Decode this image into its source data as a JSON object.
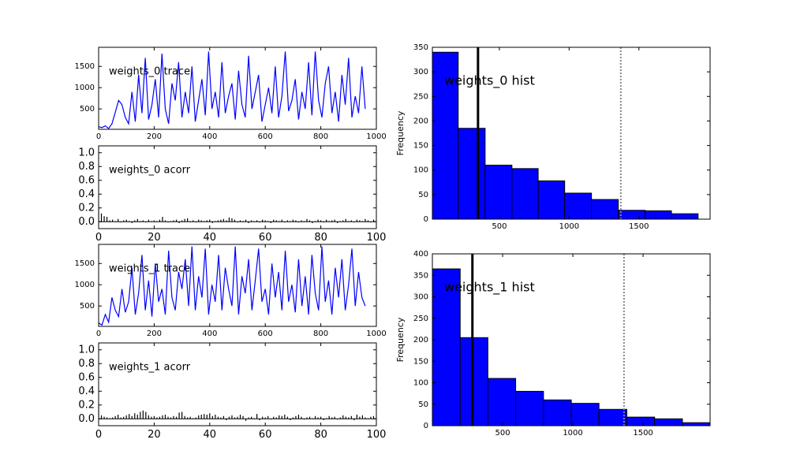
{
  "chart_data": [
    {
      "type": "line",
      "title": "weights_0 trace",
      "color": "#0000ff",
      "x": [
        0,
        12,
        24,
        36,
        48,
        60,
        72,
        84,
        96,
        108,
        120,
        132,
        144,
        156,
        168,
        180,
        192,
        204,
        216,
        228,
        240,
        252,
        264,
        276,
        288,
        300,
        312,
        324,
        336,
        348,
        360,
        372,
        384,
        396,
        408,
        420,
        432,
        444,
        456,
        468,
        480,
        492,
        504,
        516,
        528,
        540,
        552,
        564,
        576,
        588,
        600,
        612,
        624,
        636,
        648,
        660,
        672,
        684,
        696,
        708,
        720,
        732,
        744,
        756,
        768,
        780,
        792,
        804,
        816,
        828,
        840,
        852,
        864,
        876,
        888,
        900,
        912,
        924,
        936,
        948,
        960
      ],
      "values": [
        80,
        60,
        100,
        40,
        150,
        420,
        700,
        600,
        300,
        150,
        900,
        200,
        1300,
        400,
        1700,
        250,
        600,
        1200,
        300,
        1800,
        500,
        150,
        1100,
        700,
        1600,
        300,
        900,
        400,
        1500,
        200,
        700,
        1200,
        350,
        1850,
        500,
        900,
        300,
        1600,
        400,
        800,
        1100,
        250,
        1400,
        600,
        300,
        1750,
        500,
        900,
        1300,
        200,
        600,
        1000,
        400,
        1500,
        300,
        800,
        1850,
        450,
        700,
        1200,
        250,
        900,
        500,
        1600,
        350,
        1850,
        700,
        300,
        1100,
        1500,
        400,
        900,
        200,
        1300,
        600,
        1700,
        300,
        800,
        400,
        1500,
        500
      ],
      "xlim": [
        0,
        1000
      ],
      "xticks": [
        0,
        200,
        400,
        600,
        800,
        1000
      ],
      "ylim": [
        20,
        1950
      ],
      "yticks": [
        500,
        1000,
        1500
      ]
    },
    {
      "type": "stem",
      "title": "weights_0 acorr",
      "color": "#000000",
      "x": [
        0,
        1,
        2,
        3,
        4,
        5,
        6,
        7,
        8,
        9,
        10,
        11,
        12,
        13,
        14,
        15,
        16,
        17,
        18,
        19,
        20,
        21,
        22,
        23,
        24,
        25,
        26,
        27,
        28,
        29,
        30,
        31,
        32,
        33,
        34,
        35,
        36,
        37,
        38,
        39,
        40,
        41,
        42,
        43,
        44,
        45,
        46,
        47,
        48,
        49,
        50,
        51,
        52,
        53,
        54,
        55,
        56,
        57,
        58,
        59,
        60,
        61,
        62,
        63,
        64,
        65,
        66,
        67,
        68,
        69,
        70,
        71,
        72,
        73,
        74,
        75,
        76,
        77,
        78,
        79,
        80,
        81,
        82,
        83,
        84,
        85,
        86,
        87,
        88,
        89,
        90,
        91,
        92,
        93,
        94,
        95,
        96,
        97,
        98,
        99
      ],
      "values": [
        0.22,
        0.12,
        0.08,
        0.07,
        0.02,
        0.03,
        0.01,
        0.04,
        -0.01,
        0.02,
        0.03,
        0.01,
        -0.02,
        0.02,
        0.04,
        0.01,
        0.02,
        -0.01,
        0.03,
        0.01,
        0.02,
        0.01,
        0.03,
        0.07,
        0.02,
        -0.01,
        0.01,
        0.02,
        0.03,
        -0.02,
        0.02,
        0.04,
        0.05,
        0.01,
        0.02,
        -0.01,
        0.03,
        0.02,
        0.01,
        0.02,
        0.03,
        -0.02,
        0.01,
        0.02,
        0.03,
        0.04,
        0.02,
        0.06,
        0.05,
        0.03,
        -0.01,
        0.02,
        0.01,
        0.03,
        -0.02,
        0.02,
        0.01,
        0.02,
        -0.01,
        0.03,
        0.02,
        0.01,
        -0.02,
        0.03,
        0.02,
        0.01,
        0.03,
        -0.01,
        0.02,
        0.01,
        0.03,
        0.02,
        -0.01,
        0.02,
        0.01,
        0.04,
        0.02,
        -0.02,
        0.01,
        0.03,
        0.02,
        -0.01,
        0.03,
        0.01,
        0.02,
        0.03,
        -0.02,
        0.01,
        0.02,
        0.04,
        0.01,
        0.02,
        -0.01,
        0.03,
        0.02,
        0.01,
        0.04,
        0.02,
        -0.01,
        0.03
      ],
      "xlim": [
        0,
        100
      ],
      "xticks": [
        0,
        20,
        40,
        60,
        80,
        100
      ],
      "ylim": [
        -0.1,
        1.1
      ],
      "yticks": [
        {
          "value": 0,
          "label": "0.0"
        },
        0.2,
        0.4,
        0.6,
        0.8,
        {
          "value": 1,
          "label": "1.0"
        }
      ]
    },
    {
      "type": "histogram",
      "title": "weights_0 hist",
      "ylabel": "Frequency",
      "color": "#0000ff",
      "bins": [
        20,
        205,
        398,
        590,
        778,
        968,
        1160,
        1352,
        1545,
        1733,
        1924
      ],
      "values": [
        340,
        185,
        110,
        103,
        78,
        53,
        40,
        18,
        17,
        11
      ],
      "vlines": [
        {
          "value": 347,
          "color": "#000000",
          "dashed": false
        },
        {
          "value": 1370,
          "color": "#888888",
          "dashed": true
        }
      ],
      "xlim": [
        20,
        2010
      ],
      "xticks": [
        500,
        1000,
        1500
      ],
      "ylim": [
        0,
        350
      ],
      "yticks": [
        0,
        50,
        100,
        150,
        200,
        250,
        300,
        350
      ]
    },
    {
      "type": "line",
      "title": "weights_1 trace",
      "color": "#0000ff",
      "x": [
        0,
        12,
        24,
        36,
        48,
        60,
        72,
        84,
        96,
        108,
        120,
        132,
        144,
        156,
        168,
        180,
        192,
        204,
        216,
        228,
        240,
        252,
        264,
        276,
        288,
        300,
        312,
        324,
        336,
        348,
        360,
        372,
        384,
        396,
        408,
        420,
        432,
        444,
        456,
        468,
        480,
        492,
        504,
        516,
        528,
        540,
        552,
        564,
        576,
        588,
        600,
        612,
        624,
        636,
        648,
        660,
        672,
        684,
        696,
        708,
        720,
        732,
        744,
        756,
        768,
        780,
        792,
        804,
        816,
        828,
        840,
        852,
        864,
        876,
        888,
        900,
        912,
        924,
        936,
        948,
        960
      ],
      "values": [
        100,
        50,
        300,
        120,
        700,
        400,
        250,
        900,
        350,
        600,
        1400,
        300,
        800,
        1700,
        400,
        1100,
        250,
        1500,
        600,
        900,
        300,
        1800,
        700,
        400,
        1300,
        900,
        1600,
        500,
        1900,
        400,
        1200,
        700,
        1850,
        300,
        1000,
        600,
        1700,
        400,
        1400,
        900,
        500,
        1900,
        300,
        1200,
        800,
        1600,
        400,
        1100,
        1850,
        600,
        900,
        300,
        1500,
        700,
        1300,
        400,
        1800,
        600,
        1000,
        350,
        1600,
        500,
        1200,
        300,
        1700,
        800,
        400,
        1900,
        600,
        1100,
        300,
        1400,
        700,
        1600,
        400,
        1000,
        1850,
        500,
        1300,
        700,
        500
      ],
      "xlim": [
        0,
        1000
      ],
      "xticks": [
        0,
        200,
        400,
        600,
        800,
        1000
      ],
      "ylim": [
        20,
        1950
      ],
      "yticks": [
        500,
        1000,
        1500
      ]
    },
    {
      "type": "stem",
      "title": "weights_1 acorr",
      "color": "#000000",
      "x": [
        0,
        1,
        2,
        3,
        4,
        5,
        6,
        7,
        8,
        9,
        10,
        11,
        12,
        13,
        14,
        15,
        16,
        17,
        18,
        19,
        20,
        21,
        22,
        23,
        24,
        25,
        26,
        27,
        28,
        29,
        30,
        31,
        32,
        33,
        34,
        35,
        36,
        37,
        38,
        39,
        40,
        41,
        42,
        43,
        44,
        45,
        46,
        47,
        48,
        49,
        50,
        51,
        52,
        53,
        54,
        55,
        56,
        57,
        58,
        59,
        60,
        61,
        62,
        63,
        64,
        65,
        66,
        67,
        68,
        69,
        70,
        71,
        72,
        73,
        74,
        75,
        76,
        77,
        78,
        79,
        80,
        81,
        82,
        83,
        84,
        85,
        86,
        87,
        88,
        89,
        90,
        91,
        92,
        93,
        94,
        95,
        96,
        97,
        98,
        99
      ],
      "values": [
        0.2,
        0.05,
        0.03,
        0.02,
        0.01,
        0.02,
        0.04,
        0.06,
        0.02,
        0.03,
        0.05,
        0.07,
        0.04,
        0.08,
        0.06,
        0.1,
        0.12,
        0.1,
        0.05,
        0.03,
        0.04,
        0.02,
        0.03,
        0.05,
        0.06,
        0.03,
        0.02,
        0.04,
        0.03,
        0.09,
        0.1,
        0.04,
        0.02,
        0.03,
        0.01,
        0.02,
        0.05,
        0.06,
        0.07,
        0.06,
        0.08,
        0.04,
        0.06,
        0.03,
        0.02,
        0.04,
        -0.02,
        0.03,
        0.05,
        0.02,
        0.03,
        0.06,
        0.04,
        -0.03,
        0.02,
        0.03,
        0.01,
        0.07,
        -0.02,
        0.03,
        0.02,
        0.04,
        -0.01,
        0.03,
        0.02,
        0.05,
        0.04,
        0.06,
        0.03,
        -0.02,
        0.02,
        0.04,
        0.06,
        0.03,
        -0.01,
        0.02,
        0.03,
        0.01,
        0.04,
        0.02,
        0.03,
        -0.02,
        0.01,
        0.04,
        0.02,
        0.03,
        -0.01,
        0.02,
        0.05,
        0.03,
        0.02,
        0.04,
        -0.02,
        0.06,
        0.03,
        0.05,
        0.02,
        0.01,
        0.03,
        0.04
      ],
      "xlim": [
        0,
        100
      ],
      "xticks": [
        0,
        20,
        40,
        60,
        80,
        100
      ],
      "ylim": [
        -0.1,
        1.1
      ],
      "yticks": [
        {
          "value": 0,
          "label": "0.0"
        },
        0.2,
        0.4,
        0.6,
        0.8,
        {
          "value": 1,
          "label": "1.0"
        }
      ]
    },
    {
      "type": "histogram",
      "title": "weights_1 hist",
      "ylabel": "Frequency",
      "color": "#0000ff",
      "bins": [
        0,
        198,
        395,
        593,
        791,
        989,
        1186,
        1384,
        1582,
        1780,
        1977
      ],
      "values": [
        365,
        205,
        110,
        80,
        60,
        52,
        38,
        20,
        16,
        7
      ],
      "vlines": [
        {
          "value": 285,
          "color": "#000000",
          "dashed": false
        },
        {
          "value": 1364,
          "color": "#888888",
          "dashed": true
        }
      ],
      "xlim": [
        0,
        1977
      ],
      "xticks": [
        500,
        1000,
        1500
      ],
      "ylim": [
        0,
        400
      ],
      "yticks": [
        0,
        50,
        100,
        150,
        200,
        250,
        300,
        350,
        400
      ]
    }
  ]
}
